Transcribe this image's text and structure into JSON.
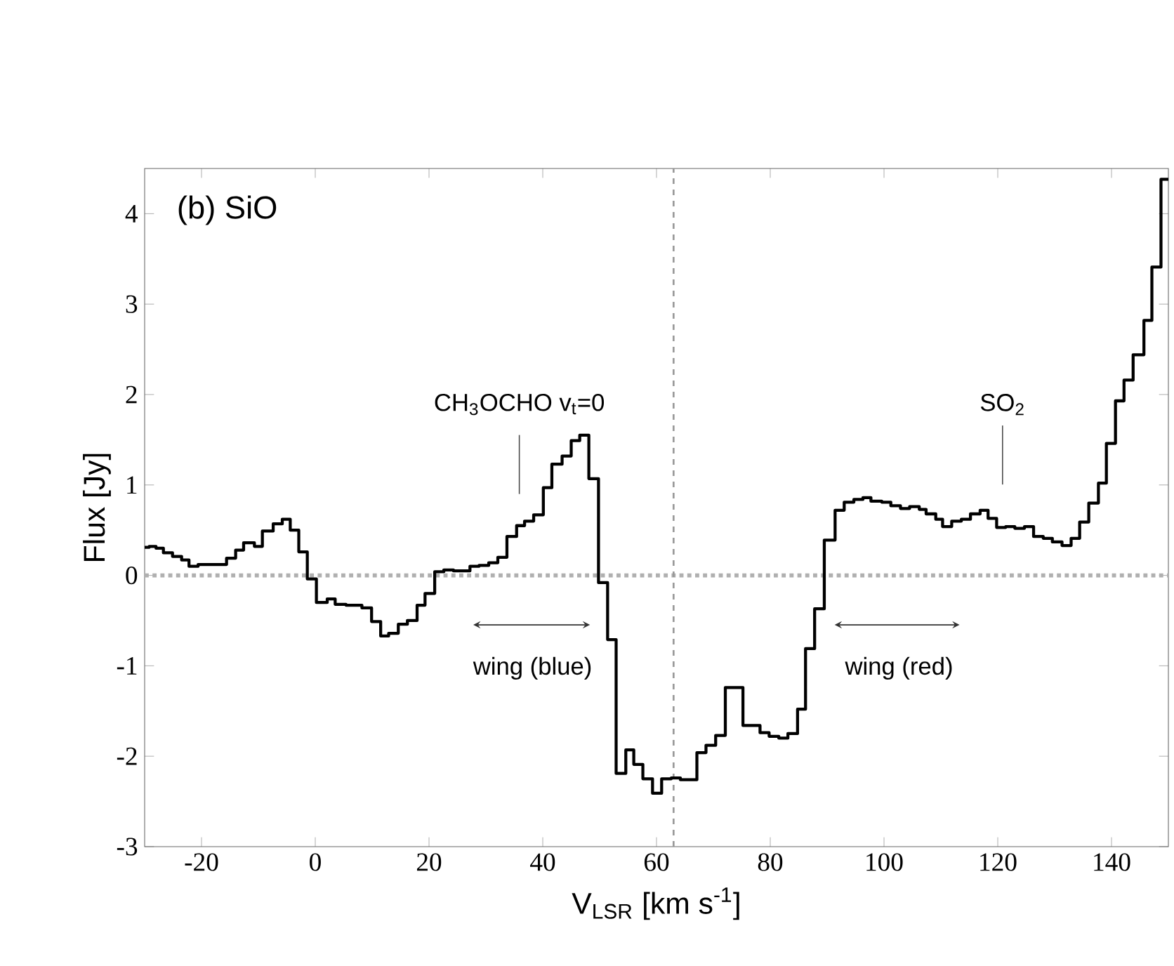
{
  "chart_data": {
    "type": "step",
    "xlabel": "V$_{LSR}$ [km s$^{-1}$]",
    "ylabel": "Flux [Jy]",
    "xlim": [
      -30,
      150
    ],
    "ylim": [
      -3,
      4.5
    ],
    "xticks": [
      -20,
      0,
      20,
      40,
      60,
      80,
      100,
      120,
      140
    ],
    "yticks": [
      -3,
      -2,
      -1,
      0,
      1,
      2,
      3,
      4
    ],
    "grid": false,
    "marker": "none",
    "line_style": "solid",
    "annotations": [
      "(b) SiO",
      "CH$_{3}$OCHO v$_{t}$=0",
      "SO$_{2}$",
      "wing (blue)",
      "wing (red)"
    ],
    "ref_lines": [
      {
        "axis": "y",
        "value": 0,
        "color": "#b0b0b0",
        "line_style": "dotted"
      },
      {
        "axis": "x",
        "value": 63,
        "color": "#999999",
        "line_style": "dashed"
      }
    ],
    "series": [
      {
        "color": "#000000",
        "x": [
          -30,
          -29.2,
          -28.0,
          -26.7,
          -25.1,
          -23.5,
          -22.2,
          -20.6,
          -15.6,
          -14.0,
          -12.6,
          -10.7,
          -9.3,
          -7.4,
          -5.8,
          -4.4,
          -2.9,
          -1.4,
          0.2,
          2.1,
          3.5,
          5.4,
          8.2,
          9.9,
          11.5,
          12.9,
          14.6,
          16.2,
          17.9,
          19.3,
          21.0,
          22.6,
          24.3,
          27.2,
          28.8,
          30.5,
          32.1,
          33.7,
          35.4,
          36.8,
          38.4,
          40.1,
          41.6,
          43.4,
          45.0,
          46.5,
          48.1,
          49.8,
          51.4,
          52.9,
          54.6,
          56.0,
          57.6,
          59.3,
          60.9,
          62.6,
          64.2,
          67.1,
          68.7,
          70.4,
          72.1,
          75.2,
          78.2,
          79.8,
          81.5,
          83.1,
          84.8,
          86.2,
          87.8,
          89.5,
          91.4,
          93.0,
          94.7,
          96.3,
          97.7,
          99.6,
          101.2,
          102.9,
          104.5,
          106.2,
          107.4,
          109.1,
          110.3,
          111.9,
          113.6,
          115.2,
          116.9,
          118.3,
          119.8,
          121.4,
          123.0,
          124.7,
          126.3,
          128.0,
          129.6,
          131.3,
          132.9,
          134.4,
          136.0,
          137.7,
          139.1,
          140.7,
          142.2,
          143.8,
          145.7,
          147.1,
          148.7,
          150
        ],
        "values": [
          0.31,
          0.32,
          0.3,
          0.25,
          0.21,
          0.17,
          0.1,
          0.12,
          0.19,
          0.28,
          0.36,
          0.32,
          0.49,
          0.57,
          0.62,
          0.5,
          0.26,
          -0.04,
          -0.3,
          -0.26,
          -0.32,
          -0.33,
          -0.36,
          -0.51,
          -0.67,
          -0.64,
          -0.54,
          -0.5,
          -0.33,
          -0.2,
          0.04,
          0.06,
          0.05,
          0.1,
          0.11,
          0.14,
          0.2,
          0.43,
          0.55,
          0.6,
          0.67,
          0.97,
          1.23,
          1.32,
          1.49,
          1.55,
          1.07,
          -0.08,
          -0.71,
          -2.19,
          -1.93,
          -2.09,
          -2.25,
          -2.41,
          -2.25,
          -2.24,
          -2.26,
          -1.96,
          -1.88,
          -1.77,
          -1.24,
          -1.66,
          -1.74,
          -1.78,
          -1.8,
          -1.75,
          -1.48,
          -0.81,
          -0.37,
          0.39,
          0.72,
          0.81,
          0.84,
          0.86,
          0.82,
          0.81,
          0.77,
          0.74,
          0.76,
          0.73,
          0.68,
          0.62,
          0.54,
          0.6,
          0.62,
          0.68,
          0.72,
          0.63,
          0.53,
          0.54,
          0.52,
          0.54,
          0.43,
          0.41,
          0.37,
          0.33,
          0.41,
          0.59,
          0.8,
          1.02,
          1.46,
          1.93,
          2.16,
          2.44,
          2.82,
          3.41,
          4.38,
          4.38
        ]
      }
    ]
  }
}
